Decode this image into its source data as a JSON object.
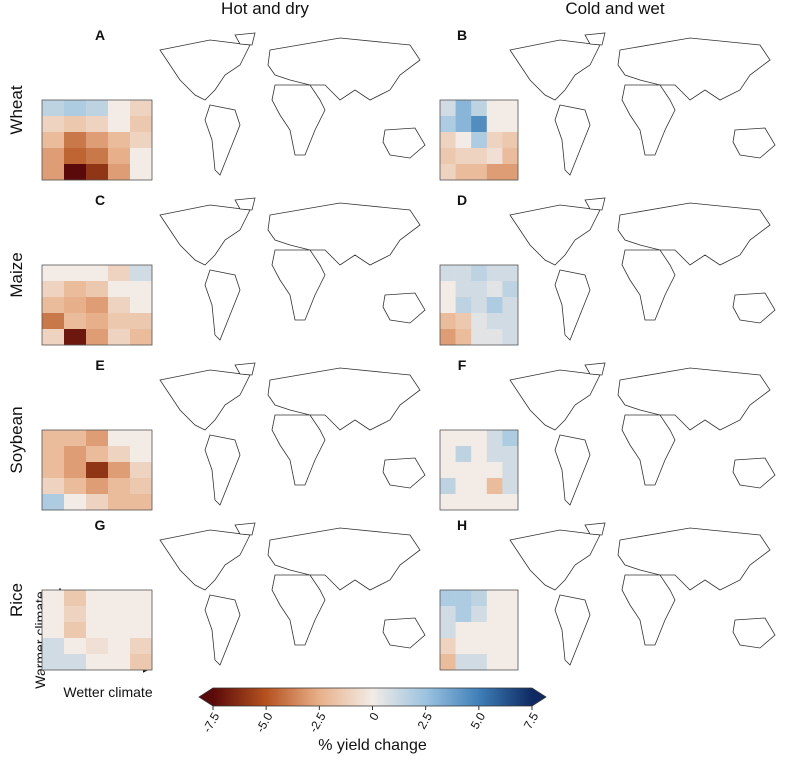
{
  "columns": [
    "Hot and dry",
    "Cold and wet"
  ],
  "rows": [
    "Wheat",
    "Maize",
    "Soybean",
    "Rice"
  ],
  "panels": [
    {
      "letter": "A",
      "grid": [
        [
          1.5,
          2,
          1.5,
          0,
          -1
        ],
        [
          -1,
          -1.5,
          -1,
          0,
          -1.5
        ],
        [
          -2,
          -4,
          -3,
          -2,
          -1
        ],
        [
          -3,
          -4.5,
          -4,
          -2.5,
          0
        ],
        [
          -3,
          -7.5,
          -6,
          -3,
          0
        ]
      ]
    },
    {
      "letter": "B",
      "grid": [
        [
          1,
          3,
          1.5,
          0,
          0
        ],
        [
          2,
          3,
          4.5,
          0,
          0
        ],
        [
          -1,
          0,
          2,
          -1,
          -1.5
        ],
        [
          -1.5,
          -1,
          -1,
          -0.5,
          -2
        ],
        [
          -1,
          -2,
          -2,
          -3,
          -3
        ]
      ]
    },
    {
      "letter": "C",
      "grid": [
        [
          0,
          0,
          0,
          -1,
          1
        ],
        [
          -1,
          -2,
          -1.5,
          0,
          0
        ],
        [
          -2,
          -2.5,
          -3,
          -1,
          0
        ],
        [
          -4,
          -2,
          -2.5,
          -1.5,
          -1.5
        ],
        [
          -1,
          -7,
          -3,
          -1,
          -2
        ]
      ]
    },
    {
      "letter": "D",
      "grid": [
        [
          1,
          1,
          1.5,
          1,
          1
        ],
        [
          0,
          1,
          1,
          0.5,
          1.5
        ],
        [
          0,
          1.5,
          1,
          2,
          1
        ],
        [
          -2,
          -1.5,
          0.5,
          1,
          1
        ],
        [
          -3,
          -2,
          0.5,
          0.5,
          1
        ]
      ]
    },
    {
      "letter": "E",
      "grid": [
        [
          -2,
          -2,
          -3,
          0,
          0
        ],
        [
          -2,
          -3,
          -2,
          -1,
          0
        ],
        [
          -2,
          -3,
          -6,
          -3,
          -1
        ],
        [
          -1,
          -2,
          -3,
          -2,
          -1.5
        ],
        [
          2,
          0,
          -1,
          -2,
          -2
        ]
      ]
    },
    {
      "letter": "F",
      "grid": [
        [
          0,
          0,
          0,
          1,
          2
        ],
        [
          0,
          1.5,
          0,
          1,
          1
        ],
        [
          0,
          0,
          0,
          0,
          1
        ],
        [
          1.5,
          0,
          0,
          -2,
          1
        ],
        [
          0,
          0,
          0,
          0,
          0
        ]
      ]
    },
    {
      "letter": "G",
      "grid": [
        [
          0,
          -1.5,
          0,
          0,
          0
        ],
        [
          0,
          -1,
          0,
          0,
          0
        ],
        [
          0,
          -1.5,
          0,
          0,
          0
        ],
        [
          1,
          0,
          -0.5,
          0,
          -1
        ],
        [
          1,
          1,
          0,
          0,
          -1.5
        ]
      ]
    },
    {
      "letter": "H",
      "grid": [
        [
          2,
          2,
          1.5,
          0,
          0
        ],
        [
          1,
          2,
          1,
          0,
          0
        ],
        [
          1,
          0,
          0,
          0,
          0
        ],
        [
          -1,
          0,
          0,
          0,
          0
        ],
        [
          -2,
          1,
          1,
          0,
          0
        ]
      ]
    }
  ],
  "inset_axes": {
    "y_label": "Warmer climate",
    "x_label": "Wetter climate"
  },
  "colorbar": {
    "label": "% yield change",
    "lim": [
      -7.5,
      7.5
    ],
    "ticks": [
      -7.5,
      {
        "value": -5,
        "label": "-5.0"
      },
      -2.5,
      0,
      2.5,
      {
        "value": 5,
        "label": "5.0"
      },
      7.5
    ],
    "colors": [
      "#5a0a0a",
      "#b5521f",
      "#e8b08a",
      "#f2ebe6",
      "#9cc3e0",
      "#3f7fb8",
      "#0f2a63"
    ]
  }
}
